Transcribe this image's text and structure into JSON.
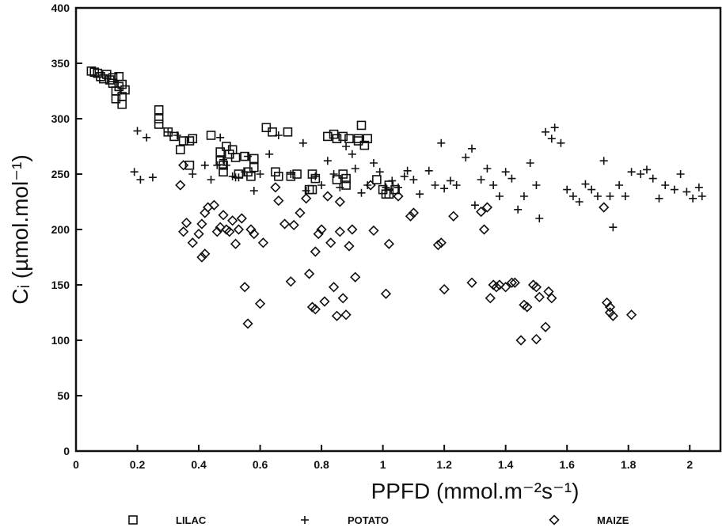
{
  "chart_data": {
    "type": "scatter",
    "title": "",
    "xlabel": "PPFD (mmol.m⁻²s⁻¹)",
    "ylabel": "Cᵢ (µmol.mol⁻¹)",
    "xlim": [
      0,
      2.1
    ],
    "ylim": [
      0,
      400
    ],
    "xticks": [
      0,
      0.2,
      0.4,
      0.6,
      0.8,
      1,
      1.2,
      1.4,
      1.6,
      1.8,
      2
    ],
    "xtick_labels": [
      "0",
      "0.2",
      "0.4",
      "0.6",
      "0.8",
      "1",
      "1.2",
      "1.4",
      "1.6",
      "1.8",
      "2"
    ],
    "yticks": [
      0,
      50,
      100,
      150,
      200,
      250,
      300,
      350,
      400
    ],
    "ytick_labels": [
      "0",
      "50",
      "100",
      "150",
      "200",
      "250",
      "300",
      "350",
      "400"
    ],
    "legend_position": "bottom",
    "series": [
      {
        "name": "LILAC",
        "marker": "square",
        "points": [
          [
            0.05,
            343
          ],
          [
            0.06,
            342
          ],
          [
            0.07,
            341
          ],
          [
            0.08,
            338
          ],
          [
            0.09,
            336
          ],
          [
            0.1,
            340
          ],
          [
            0.11,
            335
          ],
          [
            0.12,
            332
          ],
          [
            0.12,
            337
          ],
          [
            0.13,
            325
          ],
          [
            0.13,
            318
          ],
          [
            0.14,
            338
          ],
          [
            0.14,
            329
          ],
          [
            0.15,
            331
          ],
          [
            0.15,
            320
          ],
          [
            0.15,
            313
          ],
          [
            0.16,
            326
          ],
          [
            0.27,
            308
          ],
          [
            0.27,
            300
          ],
          [
            0.27,
            295
          ],
          [
            0.3,
            288
          ],
          [
            0.32,
            284
          ],
          [
            0.34,
            272
          ],
          [
            0.35,
            280
          ],
          [
            0.37,
            280
          ],
          [
            0.38,
            282
          ],
          [
            0.37,
            258
          ],
          [
            0.44,
            285
          ],
          [
            0.47,
            270
          ],
          [
            0.47,
            262
          ],
          [
            0.48,
            258
          ],
          [
            0.48,
            252
          ],
          [
            0.49,
            275
          ],
          [
            0.5,
            268
          ],
          [
            0.51,
            272
          ],
          [
            0.52,
            265
          ],
          [
            0.53,
            250
          ],
          [
            0.55,
            266
          ],
          [
            0.56,
            252
          ],
          [
            0.57,
            248
          ],
          [
            0.58,
            256
          ],
          [
            0.58,
            264
          ],
          [
            0.62,
            292
          ],
          [
            0.64,
            288
          ],
          [
            0.65,
            252
          ],
          [
            0.66,
            248
          ],
          [
            0.69,
            288
          ],
          [
            0.7,
            248
          ],
          [
            0.72,
            250
          ],
          [
            0.76,
            236
          ],
          [
            0.77,
            250
          ],
          [
            0.77,
            236
          ],
          [
            0.78,
            246
          ],
          [
            0.82,
            284
          ],
          [
            0.84,
            286
          ],
          [
            0.85,
            282
          ],
          [
            0.85,
            245
          ],
          [
            0.87,
            284
          ],
          [
            0.87,
            250
          ],
          [
            0.88,
            246
          ],
          [
            0.88,
            240
          ],
          [
            0.89,
            282
          ],
          [
            0.92,
            282
          ],
          [
            0.92,
            280
          ],
          [
            0.93,
            294
          ],
          [
            0.94,
            276
          ],
          [
            0.95,
            282
          ],
          [
            0.98,
            245
          ],
          [
            1.0,
            236
          ],
          [
            1.01,
            232
          ],
          [
            1.02,
            232
          ],
          [
            1.02,
            240
          ],
          [
            1.04,
            236
          ]
        ]
      },
      {
        "name": "POTATO",
        "marker": "plus",
        "points": [
          [
            0.19,
            252
          ],
          [
            0.2,
            289
          ],
          [
            0.21,
            245
          ],
          [
            0.23,
            283
          ],
          [
            0.25,
            247
          ],
          [
            0.3,
            288
          ],
          [
            0.33,
            285
          ],
          [
            0.38,
            250
          ],
          [
            0.42,
            258
          ],
          [
            0.44,
            245
          ],
          [
            0.46,
            258
          ],
          [
            0.47,
            283
          ],
          [
            0.48,
            263
          ],
          [
            0.49,
            258
          ],
          [
            0.51,
            248
          ],
          [
            0.52,
            247
          ],
          [
            0.53,
            247
          ],
          [
            0.55,
            252
          ],
          [
            0.56,
            266
          ],
          [
            0.58,
            235
          ],
          [
            0.6,
            250
          ],
          [
            0.63,
            268
          ],
          [
            0.66,
            285
          ],
          [
            0.7,
            250
          ],
          [
            0.74,
            278
          ],
          [
            0.75,
            235
          ],
          [
            0.78,
            248
          ],
          [
            0.8,
            240
          ],
          [
            0.82,
            262
          ],
          [
            0.84,
            250
          ],
          [
            0.86,
            238
          ],
          [
            0.88,
            275
          ],
          [
            0.9,
            268
          ],
          [
            0.91,
            255
          ],
          [
            0.93,
            233
          ],
          [
            0.95,
            240
          ],
          [
            0.97,
            260
          ],
          [
            0.99,
            252
          ],
          [
            1.01,
            238
          ],
          [
            1.03,
            244
          ],
          [
            1.05,
            238
          ],
          [
            1.07,
            248
          ],
          [
            1.08,
            253
          ],
          [
            1.1,
            245
          ],
          [
            1.12,
            232
          ],
          [
            1.15,
            253
          ],
          [
            1.17,
            240
          ],
          [
            1.19,
            278
          ],
          [
            1.2,
            237
          ],
          [
            1.22,
            244
          ],
          [
            1.24,
            240
          ],
          [
            1.27,
            265
          ],
          [
            1.29,
            273
          ],
          [
            1.3,
            222
          ],
          [
            1.32,
            245
          ],
          [
            1.34,
            255
          ],
          [
            1.36,
            240
          ],
          [
            1.38,
            230
          ],
          [
            1.4,
            252
          ],
          [
            1.42,
            246
          ],
          [
            1.44,
            218
          ],
          [
            1.46,
            230
          ],
          [
            1.48,
            260
          ],
          [
            1.5,
            240
          ],
          [
            1.51,
            210
          ],
          [
            1.53,
            288
          ],
          [
            1.55,
            282
          ],
          [
            1.56,
            292
          ],
          [
            1.58,
            278
          ],
          [
            1.6,
            236
          ],
          [
            1.62,
            230
          ],
          [
            1.64,
            225
          ],
          [
            1.66,
            241
          ],
          [
            1.68,
            236
          ],
          [
            1.7,
            230
          ],
          [
            1.72,
            262
          ],
          [
            1.74,
            230
          ],
          [
            1.75,
            202
          ],
          [
            1.77,
            240
          ],
          [
            1.79,
            230
          ],
          [
            1.81,
            252
          ],
          [
            1.84,
            250
          ],
          [
            1.86,
            254
          ],
          [
            1.88,
            246
          ],
          [
            1.9,
            228
          ],
          [
            1.92,
            240
          ],
          [
            1.95,
            236
          ],
          [
            1.97,
            250
          ],
          [
            1.99,
            234
          ],
          [
            2.01,
            228
          ],
          [
            2.03,
            238
          ],
          [
            2.04,
            230
          ]
        ]
      },
      {
        "name": "MAIZE",
        "marker": "diamond",
        "points": [
          [
            0.34,
            240
          ],
          [
            0.35,
            258
          ],
          [
            0.35,
            198
          ],
          [
            0.36,
            206
          ],
          [
            0.38,
            188
          ],
          [
            0.4,
            196
          ],
          [
            0.41,
            175
          ],
          [
            0.41,
            205
          ],
          [
            0.42,
            178
          ],
          [
            0.42,
            215
          ],
          [
            0.43,
            220
          ],
          [
            0.45,
            222
          ],
          [
            0.46,
            198
          ],
          [
            0.47,
            202
          ],
          [
            0.48,
            213
          ],
          [
            0.49,
            200
          ],
          [
            0.5,
            198
          ],
          [
            0.51,
            208
          ],
          [
            0.52,
            187
          ],
          [
            0.53,
            200
          ],
          [
            0.54,
            210
          ],
          [
            0.55,
            148
          ],
          [
            0.56,
            115
          ],
          [
            0.57,
            200
          ],
          [
            0.58,
            196
          ],
          [
            0.6,
            133
          ],
          [
            0.61,
            188
          ],
          [
            0.65,
            238
          ],
          [
            0.66,
            226
          ],
          [
            0.68,
            205
          ],
          [
            0.7,
            153
          ],
          [
            0.71,
            204
          ],
          [
            0.73,
            215
          ],
          [
            0.75,
            228
          ],
          [
            0.76,
            160
          ],
          [
            0.77,
            130
          ],
          [
            0.78,
            128
          ],
          [
            0.78,
            180
          ],
          [
            0.79,
            196
          ],
          [
            0.8,
            200
          ],
          [
            0.81,
            135
          ],
          [
            0.82,
            230
          ],
          [
            0.83,
            188
          ],
          [
            0.84,
            148
          ],
          [
            0.85,
            122
          ],
          [
            0.86,
            225
          ],
          [
            0.86,
            198
          ],
          [
            0.87,
            138
          ],
          [
            0.88,
            123
          ],
          [
            0.89,
            185
          ],
          [
            0.9,
            200
          ],
          [
            0.91,
            157
          ],
          [
            0.96,
            240
          ],
          [
            0.97,
            199
          ],
          [
            1.01,
            142
          ],
          [
            1.02,
            187
          ],
          [
            1.05,
            230
          ],
          [
            1.09,
            212
          ],
          [
            1.1,
            215
          ],
          [
            1.18,
            186
          ],
          [
            1.19,
            188
          ],
          [
            1.2,
            146
          ],
          [
            1.23,
            212
          ],
          [
            1.29,
            152
          ],
          [
            1.32,
            216
          ],
          [
            1.33,
            200
          ],
          [
            1.34,
            220
          ],
          [
            1.35,
            138
          ],
          [
            1.36,
            150
          ],
          [
            1.37,
            148
          ],
          [
            1.38,
            150
          ],
          [
            1.4,
            148
          ],
          [
            1.42,
            152
          ],
          [
            1.43,
            152
          ],
          [
            1.45,
            100
          ],
          [
            1.46,
            132
          ],
          [
            1.47,
            130
          ],
          [
            1.49,
            150
          ],
          [
            1.5,
            101
          ],
          [
            1.5,
            148
          ],
          [
            1.51,
            139
          ],
          [
            1.53,
            112
          ],
          [
            1.54,
            144
          ],
          [
            1.55,
            138
          ],
          [
            1.72,
            220
          ],
          [
            1.73,
            134
          ],
          [
            1.74,
            130
          ],
          [
            1.74,
            125
          ],
          [
            1.75,
            122
          ],
          [
            1.81,
            123
          ]
        ]
      }
    ]
  }
}
